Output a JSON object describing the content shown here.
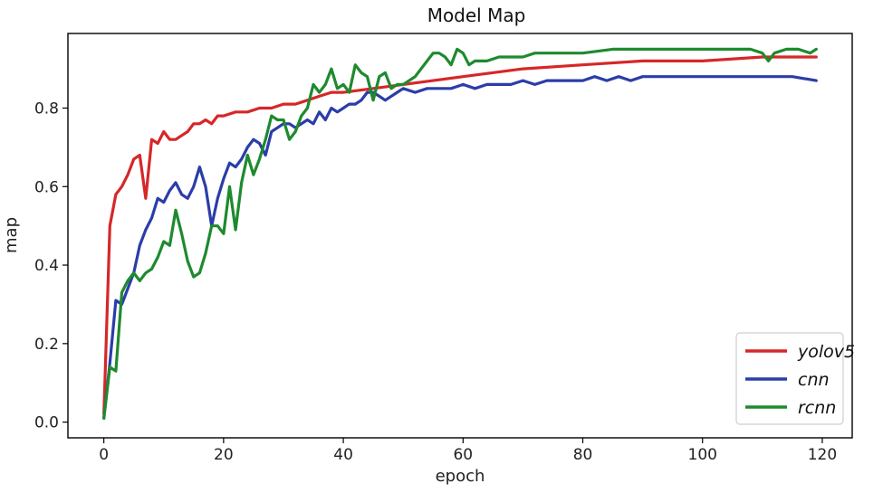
{
  "chart_data": {
    "type": "line",
    "title": "Model Map",
    "xlabel": "epoch",
    "ylabel": "map",
    "xlim": [
      -6,
      125
    ],
    "ylim": [
      -0.04,
      0.99
    ],
    "xticks": [
      0,
      20,
      40,
      60,
      80,
      100,
      120
    ],
    "yticks": [
      0.0,
      0.2,
      0.4,
      0.6,
      0.8
    ],
    "grid": false,
    "legend_position": "bottom-right",
    "series": [
      {
        "name": "yolov5",
        "color": "#d62728",
        "points": [
          [
            0,
            0.02
          ],
          [
            1,
            0.5
          ],
          [
            2,
            0.58
          ],
          [
            3,
            0.6
          ],
          [
            4,
            0.63
          ],
          [
            5,
            0.67
          ],
          [
            6,
            0.68
          ],
          [
            7,
            0.57
          ],
          [
            8,
            0.72
          ],
          [
            9,
            0.71
          ],
          [
            10,
            0.74
          ],
          [
            11,
            0.72
          ],
          [
            12,
            0.72
          ],
          [
            13,
            0.73
          ],
          [
            14,
            0.74
          ],
          [
            15,
            0.76
          ],
          [
            16,
            0.76
          ],
          [
            17,
            0.77
          ],
          [
            18,
            0.76
          ],
          [
            19,
            0.78
          ],
          [
            20,
            0.78
          ],
          [
            22,
            0.79
          ],
          [
            24,
            0.79
          ],
          [
            26,
            0.8
          ],
          [
            28,
            0.8
          ],
          [
            30,
            0.81
          ],
          [
            32,
            0.81
          ],
          [
            34,
            0.82
          ],
          [
            36,
            0.83
          ],
          [
            38,
            0.84
          ],
          [
            40,
            0.84
          ],
          [
            45,
            0.85
          ],
          [
            50,
            0.86
          ],
          [
            55,
            0.87
          ],
          [
            60,
            0.88
          ],
          [
            70,
            0.9
          ],
          [
            80,
            0.91
          ],
          [
            90,
            0.92
          ],
          [
            100,
            0.92
          ],
          [
            110,
            0.93
          ],
          [
            119,
            0.93
          ]
        ]
      },
      {
        "name": "cnn",
        "color": "#2b3da8",
        "points": [
          [
            0,
            0.01
          ],
          [
            1,
            0.15
          ],
          [
            2,
            0.31
          ],
          [
            3,
            0.3
          ],
          [
            4,
            0.34
          ],
          [
            5,
            0.38
          ],
          [
            6,
            0.45
          ],
          [
            7,
            0.49
          ],
          [
            8,
            0.52
          ],
          [
            9,
            0.57
          ],
          [
            10,
            0.56
          ],
          [
            11,
            0.59
          ],
          [
            12,
            0.61
          ],
          [
            13,
            0.58
          ],
          [
            14,
            0.57
          ],
          [
            15,
            0.6
          ],
          [
            16,
            0.65
          ],
          [
            17,
            0.6
          ],
          [
            18,
            0.5
          ],
          [
            19,
            0.57
          ],
          [
            20,
            0.62
          ],
          [
            21,
            0.66
          ],
          [
            22,
            0.65
          ],
          [
            23,
            0.67
          ],
          [
            24,
            0.7
          ],
          [
            25,
            0.72
          ],
          [
            26,
            0.71
          ],
          [
            27,
            0.68
          ],
          [
            28,
            0.74
          ],
          [
            29,
            0.75
          ],
          [
            30,
            0.76
          ],
          [
            31,
            0.76
          ],
          [
            32,
            0.75
          ],
          [
            33,
            0.76
          ],
          [
            34,
            0.77
          ],
          [
            35,
            0.76
          ],
          [
            36,
            0.79
          ],
          [
            37,
            0.77
          ],
          [
            38,
            0.8
          ],
          [
            39,
            0.79
          ],
          [
            40,
            0.8
          ],
          [
            41,
            0.81
          ],
          [
            42,
            0.81
          ],
          [
            43,
            0.82
          ],
          [
            44,
            0.84
          ],
          [
            45,
            0.84
          ],
          [
            46,
            0.83
          ],
          [
            47,
            0.82
          ],
          [
            48,
            0.83
          ],
          [
            49,
            0.84
          ],
          [
            50,
            0.85
          ],
          [
            52,
            0.84
          ],
          [
            54,
            0.85
          ],
          [
            56,
            0.85
          ],
          [
            58,
            0.85
          ],
          [
            60,
            0.86
          ],
          [
            62,
            0.85
          ],
          [
            64,
            0.86
          ],
          [
            66,
            0.86
          ],
          [
            68,
            0.86
          ],
          [
            70,
            0.87
          ],
          [
            72,
            0.86
          ],
          [
            74,
            0.87
          ],
          [
            76,
            0.87
          ],
          [
            78,
            0.87
          ],
          [
            80,
            0.87
          ],
          [
            82,
            0.88
          ],
          [
            84,
            0.87
          ],
          [
            86,
            0.88
          ],
          [
            88,
            0.87
          ],
          [
            90,
            0.88
          ],
          [
            95,
            0.88
          ],
          [
            100,
            0.88
          ],
          [
            105,
            0.88
          ],
          [
            110,
            0.88
          ],
          [
            115,
            0.88
          ],
          [
            119,
            0.87
          ]
        ]
      },
      {
        "name": "rcnn",
        "color": "#1e8a2e",
        "points": [
          [
            0,
            0.01
          ],
          [
            1,
            0.14
          ],
          [
            2,
            0.13
          ],
          [
            3,
            0.33
          ],
          [
            4,
            0.36
          ],
          [
            5,
            0.38
          ],
          [
            6,
            0.36
          ],
          [
            7,
            0.38
          ],
          [
            8,
            0.39
          ],
          [
            9,
            0.42
          ],
          [
            10,
            0.46
          ],
          [
            11,
            0.45
          ],
          [
            12,
            0.54
          ],
          [
            13,
            0.48
          ],
          [
            14,
            0.41
          ],
          [
            15,
            0.37
          ],
          [
            16,
            0.38
          ],
          [
            17,
            0.43
          ],
          [
            18,
            0.5
          ],
          [
            19,
            0.5
          ],
          [
            20,
            0.48
          ],
          [
            21,
            0.6
          ],
          [
            22,
            0.49
          ],
          [
            23,
            0.61
          ],
          [
            24,
            0.68
          ],
          [
            25,
            0.63
          ],
          [
            26,
            0.67
          ],
          [
            27,
            0.72
          ],
          [
            28,
            0.78
          ],
          [
            29,
            0.77
          ],
          [
            30,
            0.77
          ],
          [
            31,
            0.72
          ],
          [
            32,
            0.74
          ],
          [
            33,
            0.78
          ],
          [
            34,
            0.8
          ],
          [
            35,
            0.86
          ],
          [
            36,
            0.84
          ],
          [
            37,
            0.86
          ],
          [
            38,
            0.9
          ],
          [
            39,
            0.85
          ],
          [
            40,
            0.86
          ],
          [
            41,
            0.84
          ],
          [
            42,
            0.91
          ],
          [
            43,
            0.89
          ],
          [
            44,
            0.88
          ],
          [
            45,
            0.82
          ],
          [
            46,
            0.88
          ],
          [
            47,
            0.89
          ],
          [
            48,
            0.85
          ],
          [
            49,
            0.86
          ],
          [
            50,
            0.86
          ],
          [
            52,
            0.88
          ],
          [
            54,
            0.92
          ],
          [
            55,
            0.94
          ],
          [
            56,
            0.94
          ],
          [
            57,
            0.93
          ],
          [
            58,
            0.91
          ],
          [
            59,
            0.95
          ],
          [
            60,
            0.94
          ],
          [
            61,
            0.91
          ],
          [
            62,
            0.92
          ],
          [
            64,
            0.92
          ],
          [
            66,
            0.93
          ],
          [
            68,
            0.93
          ],
          [
            70,
            0.93
          ],
          [
            72,
            0.94
          ],
          [
            75,
            0.94
          ],
          [
            78,
            0.94
          ],
          [
            80,
            0.94
          ],
          [
            85,
            0.95
          ],
          [
            90,
            0.95
          ],
          [
            95,
            0.95
          ],
          [
            100,
            0.95
          ],
          [
            103,
            0.95
          ],
          [
            105,
            0.95
          ],
          [
            108,
            0.95
          ],
          [
            110,
            0.94
          ],
          [
            111,
            0.92
          ],
          [
            112,
            0.94
          ],
          [
            114,
            0.95
          ],
          [
            116,
            0.95
          ],
          [
            118,
            0.94
          ],
          [
            119,
            0.95
          ]
        ]
      }
    ]
  }
}
